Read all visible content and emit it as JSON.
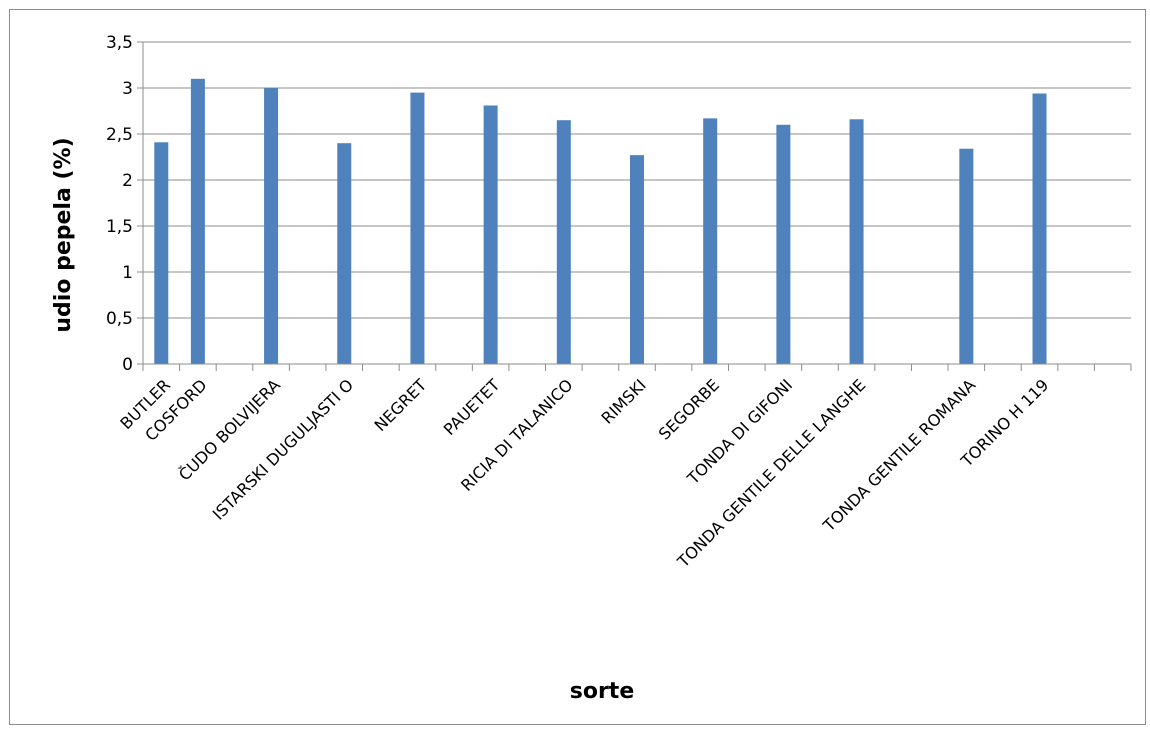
{
  "chart_data": {
    "type": "bar",
    "title": "",
    "xlabel": "sorte",
    "ylabel": "udio pepela (%)",
    "ylim": [
      0,
      3.5
    ],
    "yticks": [
      "0",
      "0,5",
      "1",
      "1,5",
      "2",
      "2,5",
      "3",
      "3,5"
    ],
    "grid": true,
    "legend": "none",
    "bar_color": "#4f81bd",
    "categories": [
      "BUTLER",
      "COSFORD",
      "",
      "ČUDO BOLVIJERA",
      "",
      "ISTARSKI DUGULJASTI O",
      "",
      "NEGRET",
      "",
      "PAUETET",
      "",
      "RICIA DI TALANICO",
      "",
      "RIMSKI",
      "",
      "SEGORBE",
      "",
      "TONDA DI GIFONI",
      "",
      "TONDA GENTILE DELLE LANGHE",
      "",
      "",
      "TONDA GENTILE ROMANA",
      "",
      "TORINO H 119",
      "",
      ""
    ],
    "values": [
      2.41,
      3.1,
      null,
      3.0,
      null,
      2.4,
      null,
      2.95,
      null,
      2.81,
      null,
      2.65,
      null,
      2.27,
      null,
      2.67,
      null,
      2.6,
      null,
      2.66,
      null,
      null,
      2.34,
      null,
      2.94,
      null,
      null
    ]
  }
}
